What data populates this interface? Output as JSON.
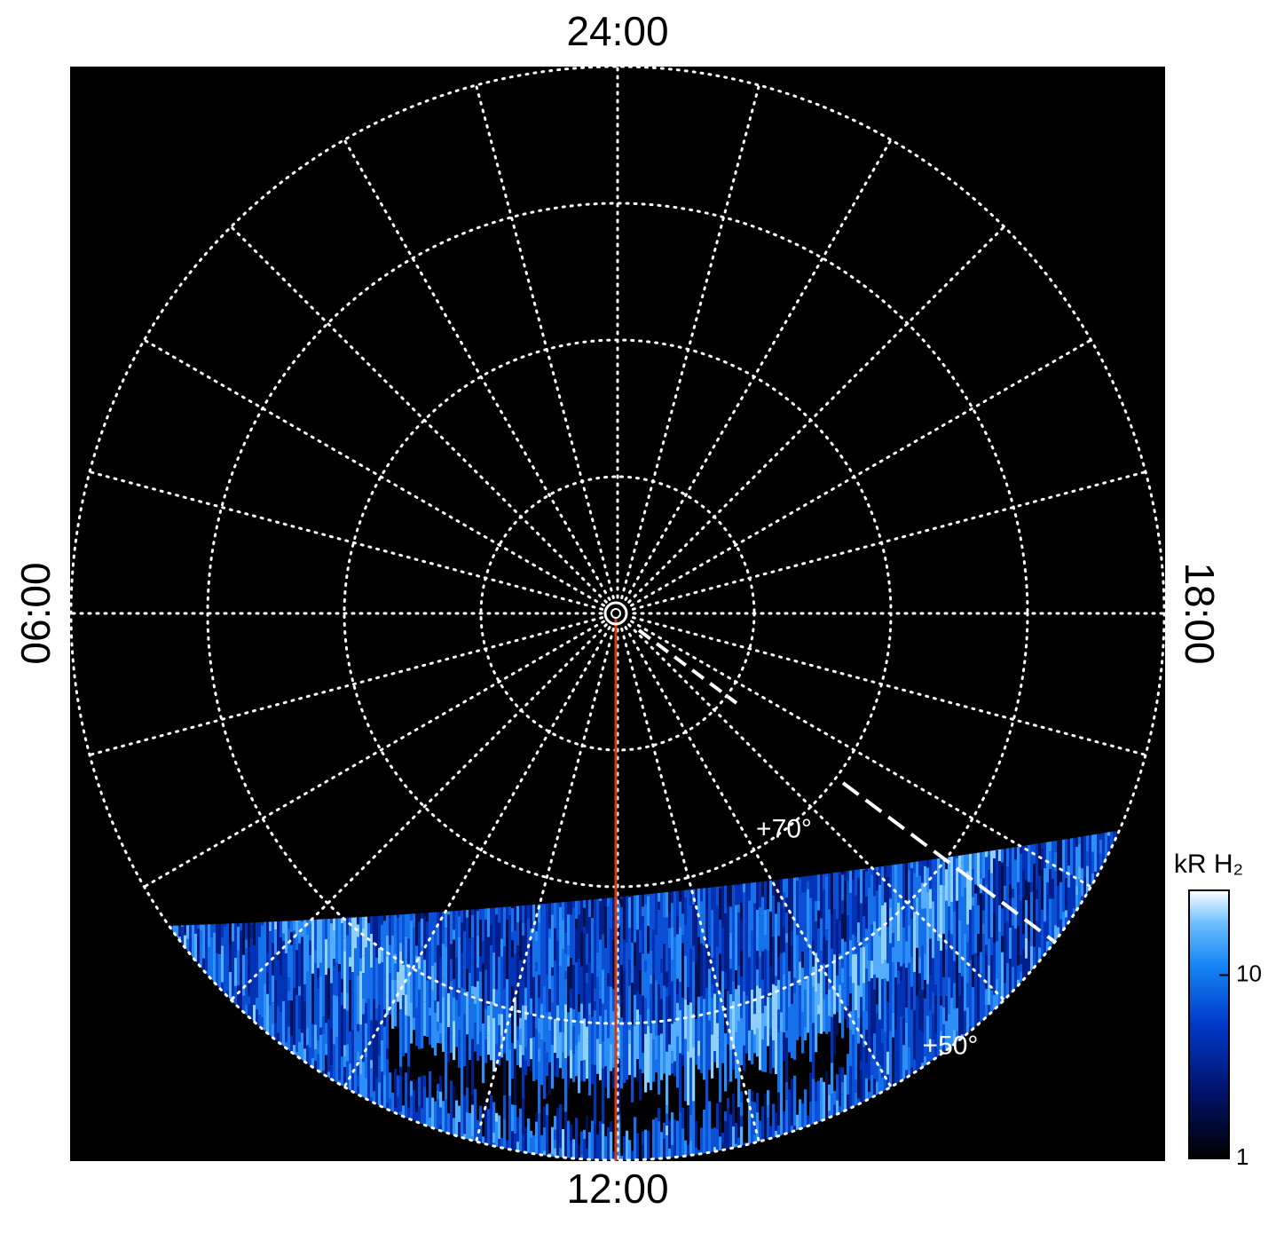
{
  "chart_data": {
    "type": "polar",
    "theta_ticks": [
      {
        "value": 24,
        "label": "24:00"
      },
      {
        "value": 6,
        "label": "06:00"
      },
      {
        "value": 18,
        "label": "18:00"
      },
      {
        "value": 12,
        "label": "12:00"
      }
    ],
    "r_ticks": [
      {
        "value": 70,
        "label": "+70°"
      },
      {
        "value": 50,
        "label": "+50°"
      }
    ],
    "rlim": [
      90,
      50
    ],
    "colorbar": {
      "label": "kR H₂",
      "lim": [
        1,
        29
      ],
      "ticks": [
        1,
        10
      ],
      "log": true
    }
  }
}
